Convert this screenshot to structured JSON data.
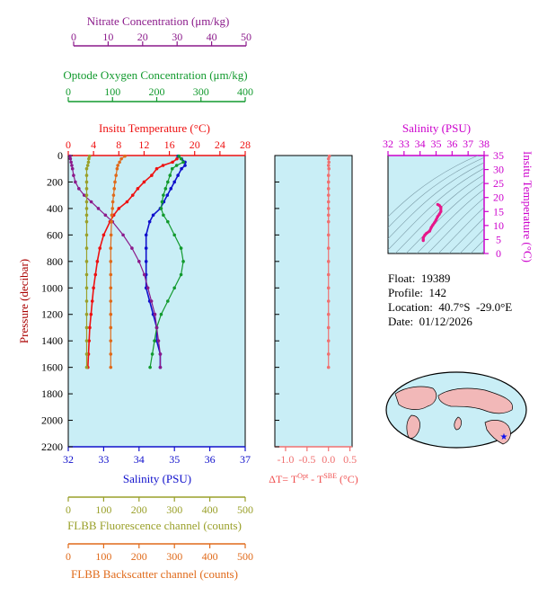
{
  "colors": {
    "nitrate": "#8b1a8b",
    "oxygen": "#129a2e",
    "temperature": "#ee1111",
    "salinity": "#1010cc",
    "fluor": "#9aa02a",
    "backscatter": "#e06a1a",
    "dt": "#f07070",
    "panel_bg": "#c9eef6",
    "ts_line": "#e6178a",
    "ts_axis": "#cc00cc"
  },
  "axes": {
    "nitrate": {
      "label": "Nitrate Concentration (μm/kg)",
      "ticks": [
        "0",
        "10",
        "20",
        "30",
        "40",
        "50"
      ],
      "range": [
        0,
        50
      ]
    },
    "oxygen": {
      "label": "Optode Oxygen Concentration (μm/kg)",
      "ticks": [
        "0",
        "100",
        "200",
        "300",
        "400"
      ],
      "range": [
        0,
        400
      ]
    },
    "temperature": {
      "label": "Insitu Temperature (°C)",
      "ticks": [
        "0",
        "4",
        "8",
        "12",
        "16",
        "20",
        "24",
        "28"
      ],
      "range": [
        0,
        28
      ]
    },
    "pressure": {
      "label": "Pressure (decibar)",
      "ticks": [
        "0",
        "200",
        "400",
        "600",
        "800",
        "1000",
        "1200",
        "1400",
        "1600",
        "1800",
        "2000",
        "2200"
      ],
      "range": [
        0,
        2200
      ]
    },
    "salinity": {
      "label": "Salinity (PSU)",
      "ticks": [
        "32",
        "33",
        "34",
        "35",
        "36",
        "37"
      ],
      "range": [
        32,
        37
      ]
    },
    "fluor": {
      "label": "FLBB Fluorescence channel (counts)",
      "ticks": [
        "0",
        "100",
        "200",
        "300",
        "400",
        "500"
      ],
      "range": [
        0,
        500
      ]
    },
    "backscatter": {
      "label": "FLBB Backscatter channel (counts)",
      "ticks": [
        "0",
        "100",
        "200",
        "300",
        "400",
        "500"
      ],
      "range": [
        0,
        500
      ]
    },
    "dt": {
      "label": "ΔT= T",
      "sup1": "Opt",
      "mid": " - T",
      "sup2": "SBE",
      "unit": " (°C)",
      "ticks": [
        "-1.0",
        "-0.5",
        "0.0",
        "0.5"
      ],
      "range": [
        -1.25,
        0.55
      ]
    },
    "ts_salinity": {
      "label": "Salinity (PSU)",
      "ticks": [
        "32",
        "33",
        "34",
        "35",
        "36",
        "37",
        "38"
      ],
      "range": [
        32,
        38
      ]
    },
    "ts_temperature": {
      "label": "Insitu Temperature (°C)",
      "ticks": [
        "0",
        "5",
        "10",
        "15",
        "20",
        "25",
        "30",
        "35"
      ],
      "range": [
        0,
        35
      ]
    }
  },
  "info": {
    "float": "Float:  19389",
    "profile": "Profile:  142",
    "location": "Location:  40.7°S  -29.0°E",
    "date": "Date:  01/12/2026"
  },
  "chart_data": {
    "type": "line",
    "pressure": [
      5,
      25,
      50,
      75,
      100,
      150,
      200,
      250,
      300,
      350,
      400,
      450,
      500,
      600,
      700,
      800,
      900,
      1000,
      1100,
      1200,
      1300,
      1400,
      1500,
      1600
    ],
    "series": [
      {
        "key": "temperature",
        "values": [
          17.5,
          17.2,
          16.5,
          15.0,
          14.0,
          13.2,
          12.0,
          11.0,
          10.2,
          9.3,
          8.0,
          7.2,
          6.6,
          5.6,
          5.0,
          4.6,
          4.3,
          4.0,
          3.8,
          3.6,
          3.4,
          3.3,
          3.2,
          3.1
        ]
      },
      {
        "key": "salinity",
        "values": [
          35.1,
          35.2,
          35.3,
          35.3,
          35.2,
          35.1,
          35.0,
          34.9,
          34.8,
          34.7,
          34.6,
          34.4,
          34.3,
          34.2,
          34.2,
          34.2,
          34.2,
          34.2,
          34.3,
          34.4,
          34.5,
          34.5,
          34.6,
          34.6
        ]
      },
      {
        "key": "oxygen",
        "values": [
          250,
          255,
          260,
          245,
          235,
          230,
          225,
          220,
          215,
          212,
          210,
          215,
          225,
          240,
          255,
          260,
          255,
          240,
          225,
          210,
          200,
          195,
          190,
          185
        ]
      },
      {
        "key": "nitrate",
        "values": [
          0.5,
          0.6,
          0.8,
          1.0,
          1.2,
          1.5,
          2.0,
          3.0,
          4.5,
          6.5,
          8.5,
          10.5,
          12.5,
          15.5,
          18.0,
          20.0,
          21.5,
          22.5,
          23.5,
          24.5,
          25.0,
          25.5,
          26.0,
          26.0
        ]
      },
      {
        "key": "fluor",
        "values": [
          60,
          58,
          57,
          55,
          52,
          52,
          52,
          52,
          52,
          52,
          52,
          52,
          52,
          52,
          52,
          52,
          52,
          52,
          52,
          52,
          52,
          52,
          52,
          52
        ]
      },
      {
        "key": "backscatter",
        "values": [
          160,
          150,
          145,
          140,
          138,
          135,
          132,
          130,
          128,
          126,
          125,
          123,
          122,
          121,
          120,
          120,
          120,
          120,
          120,
          120,
          120,
          120,
          120,
          120
        ]
      },
      {
        "key": "dt",
        "values": [
          0.02,
          0.0,
          0.01,
          0.0,
          0.01,
          0.0,
          0.0,
          0.0,
          0.0,
          0.0,
          0.0,
          0.0,
          0.0,
          0.0,
          0.0,
          0.0,
          0.0,
          0.0,
          0.0,
          0.0,
          0.0,
          0.0,
          0.0,
          0.0
        ]
      }
    ],
    "ts": {
      "salinity": [
        35.1,
        35.2,
        35.3,
        35.3,
        35.2,
        35.1,
        35.0,
        34.9,
        34.8,
        34.7,
        34.6,
        34.4,
        34.3,
        34.2,
        34.2,
        34.2
      ],
      "temperature": [
        17.5,
        17.2,
        16.5,
        15.0,
        14.0,
        13.2,
        12.0,
        11.0,
        10.2,
        9.3,
        8.0,
        7.2,
        6.6,
        5.6,
        5.0,
        4.6
      ]
    }
  }
}
